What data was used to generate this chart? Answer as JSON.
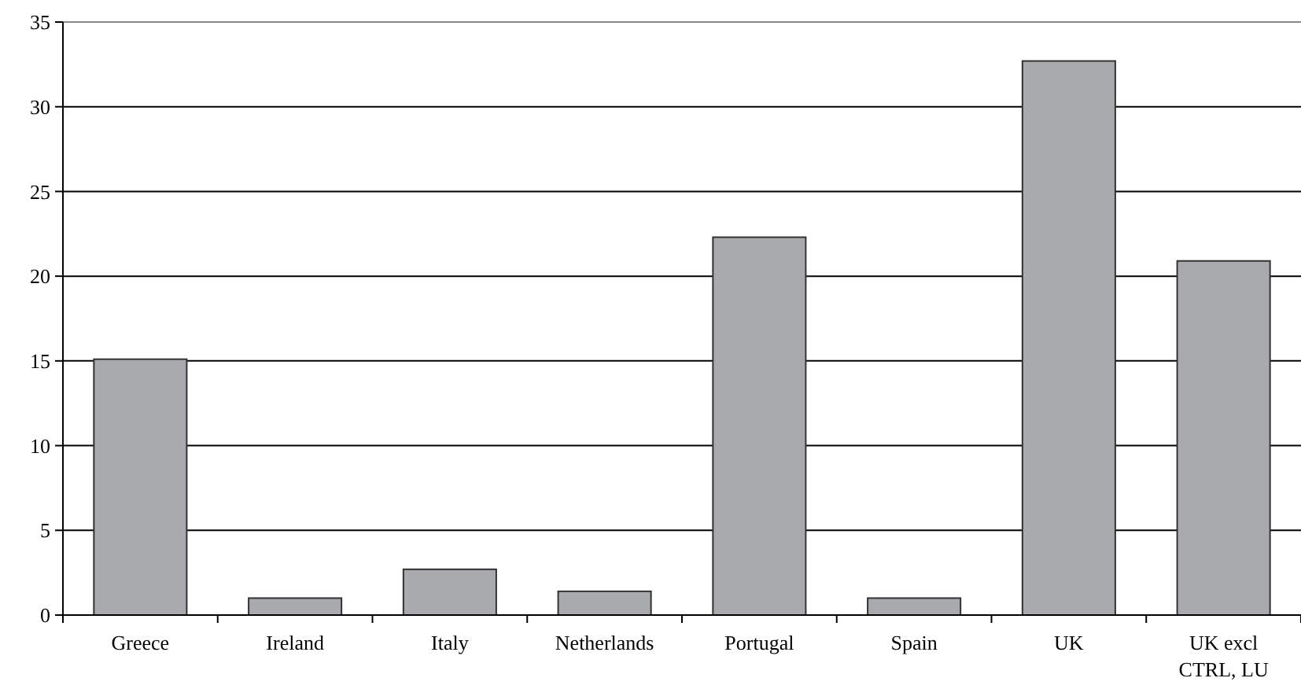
{
  "chart_data": {
    "type": "bar",
    "categories": [
      "Greece",
      "Ireland",
      "Italy",
      "Netherlands",
      "Portugal",
      "Spain",
      "UK",
      "UK excl CTRL, LU"
    ],
    "values": [
      15.1,
      1.0,
      2.7,
      1.4,
      22.3,
      1.0,
      32.7,
      20.9
    ],
    "color": "#a9aaad",
    "ylim": [
      0,
      35
    ],
    "yticks": [
      0,
      5,
      10,
      15,
      20,
      25,
      30,
      35
    ],
    "grid": "y"
  }
}
